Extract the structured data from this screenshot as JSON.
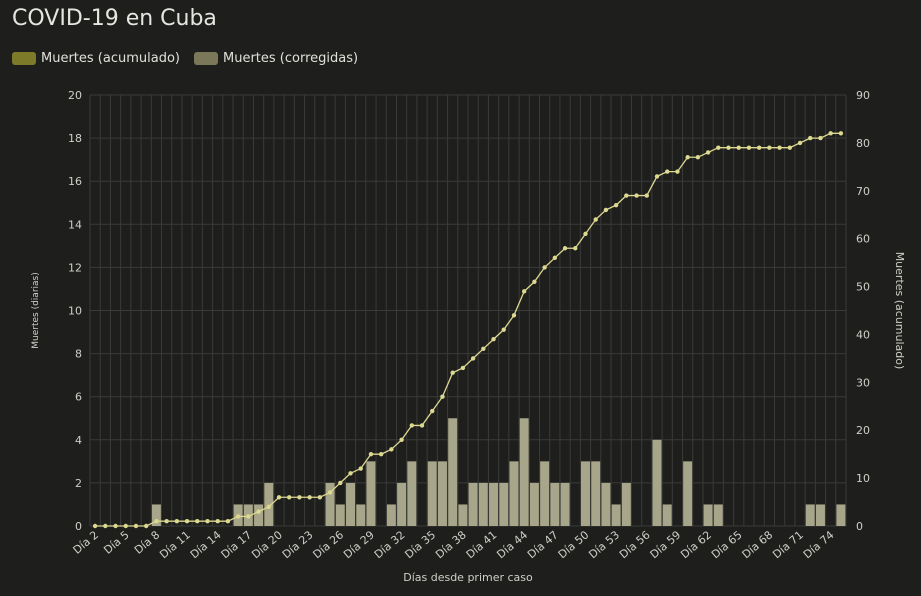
{
  "title": "COVID-19 en Cuba",
  "colors": {
    "background": "#1e1f1d",
    "grid": "#3a3b38",
    "line": "#dcd890",
    "bars": "#a8a68a",
    "legend_line": "#7d7a2a",
    "legend_bars": "#7a7858"
  },
  "legend": [
    {
      "label": "Muertes (acumulado)",
      "color": "#7d7a2a"
    },
    {
      "label": "Muertes (corregidas)",
      "color": "#7a7858"
    }
  ],
  "chart_data": {
    "type": "bar",
    "title": "COVID-19 en Cuba",
    "xlabel": "Días desde primer caso",
    "ylabel": "Muertes (diarias)",
    "y2label": "Muertes (acumulado)",
    "ylim": [
      0,
      20
    ],
    "y2lim": [
      0,
      90
    ],
    "yticks": [
      0,
      2,
      4,
      6,
      8,
      10,
      12,
      14,
      16,
      18,
      20
    ],
    "y2ticks": [
      0,
      10,
      20,
      30,
      40,
      50,
      60,
      70,
      80,
      90
    ],
    "categories": [
      "Día 2",
      "Día 3",
      "Día 4",
      "Día 5",
      "Día 6",
      "Día 7",
      "Día 8",
      "Día 9",
      "Día 10",
      "Día 11",
      "Día 12",
      "Día 13",
      "Día 14",
      "Día 15",
      "Día 16",
      "Día 17",
      "Día 18",
      "Día 19",
      "Día 20",
      "Día 21",
      "Día 22",
      "Día 23",
      "Día 24",
      "Día 25",
      "Día 26",
      "Día 27",
      "Día 28",
      "Día 29",
      "Día 30",
      "Día 31",
      "Día 32",
      "Día 33",
      "Día 34",
      "Día 35",
      "Día 36",
      "Día 37",
      "Día 38",
      "Día 39",
      "Día 40",
      "Día 41",
      "Día 42",
      "Día 43",
      "Día 44",
      "Día 45",
      "Día 46",
      "Día 47",
      "Día 48",
      "Día 49",
      "Día 50",
      "Día 51",
      "Día 52",
      "Día 53",
      "Día 54",
      "Día 55",
      "Día 56",
      "Día 57",
      "Día 58",
      "Día 59",
      "Día 60",
      "Día 61",
      "Día 62",
      "Día 63",
      "Día 64",
      "Día 65",
      "Día 66",
      "Día 67",
      "Día 68",
      "Día 69",
      "Día 70",
      "Día 71",
      "Día 72",
      "Día 73",
      "Día 74",
      "Día 75"
    ],
    "tick_labels": [
      "Día 2",
      "Día 5",
      "Día 8",
      "Día 11",
      "Día 14",
      "Día 17",
      "Día 20",
      "Día 23",
      "Día 26",
      "Día 29",
      "Día 32",
      "Día 35",
      "Día 38",
      "Día 41",
      "Día 44",
      "Día 47",
      "Día 50",
      "Día 53",
      "Día 56",
      "Día 59",
      "Día 62",
      "Día 65",
      "Día 68",
      "Día 71",
      "Día 74"
    ],
    "series": [
      {
        "name": "Muertes (corregidas)",
        "type": "bar",
        "axis": "left",
        "values": [
          0,
          0,
          0,
          0,
          0,
          0,
          1,
          0,
          0,
          0,
          0,
          0,
          0,
          0,
          1,
          1,
          1,
          2,
          0,
          0,
          0,
          0,
          0,
          2,
          1,
          2,
          1,
          3,
          0,
          1,
          2,
          3,
          0,
          3,
          3,
          5,
          1,
          2,
          2,
          2,
          2,
          3,
          5,
          2,
          3,
          2,
          2,
          0,
          3,
          3,
          2,
          1,
          2,
          0,
          0,
          4,
          1,
          0,
          3,
          0,
          1,
          1,
          0,
          0,
          0,
          0,
          0,
          0,
          0,
          0,
          1,
          1,
          0,
          1
        ]
      },
      {
        "name": "Muertes (acumulado)",
        "type": "line",
        "axis": "right",
        "values": [
          0,
          0,
          0,
          0,
          0,
          0,
          1,
          1,
          1,
          1,
          1,
          1,
          1,
          1,
          2,
          2,
          3,
          4,
          6,
          6,
          6,
          6,
          6,
          7,
          9,
          11,
          12,
          15,
          15,
          16,
          18,
          21,
          21,
          24,
          27,
          32,
          33,
          35,
          37,
          39,
          41,
          44,
          49,
          51,
          54,
          56,
          58,
          58,
          61,
          64,
          66,
          67,
          69,
          69,
          69,
          73,
          74,
          74,
          77,
          77,
          78,
          79,
          79,
          79,
          79,
          79,
          79,
          79,
          79,
          80,
          81,
          81,
          82,
          82
        ]
      }
    ],
    "grid": true,
    "legend_position": "top-left"
  }
}
